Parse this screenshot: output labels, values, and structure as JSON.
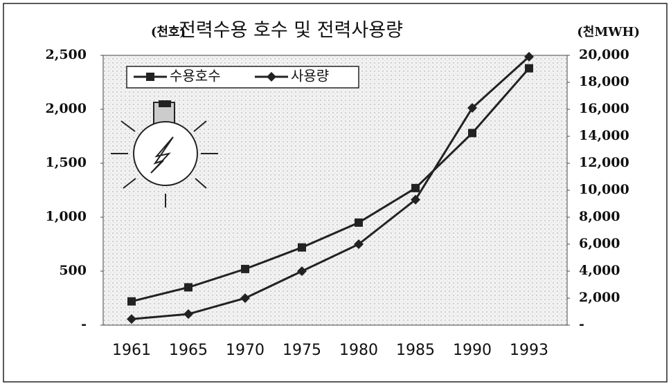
{
  "chart_data": {
    "type": "line",
    "title": "전력수용 호수 및 전력사용량",
    "y_label": "(천호)",
    "y2_label": "(천MWH)",
    "categories": [
      "1961",
      "1965",
      "1970",
      "1975",
      "1980",
      "1985",
      "1990",
      "1993"
    ],
    "series": [
      {
        "name": "수용호수",
        "color": "#222222",
        "marker": "square",
        "values": [
          220,
          350,
          520,
          720,
          950,
          1270,
          1780,
          2380
        ]
      },
      {
        "name": "사용량",
        "color": "#222222",
        "marker": "diamond",
        "axis": "y2",
        "values": [
          450,
          820,
          2000,
          4000,
          6000,
          9300,
          16100,
          19900
        ]
      }
    ],
    "ylim": [
      0,
      2500
    ],
    "yticks": [
      {
        "value": 0,
        "label": "-"
      },
      500,
      {
        "value": 1000,
        "label": "1,000"
      },
      {
        "value": 1500,
        "label": "1,500"
      },
      {
        "value": 2000,
        "label": "2,000"
      },
      {
        "value": 2500,
        "label": "2,500"
      }
    ],
    "y2lim": [
      0,
      20000
    ],
    "y2ticks": [
      {
        "value": 0,
        "label": "-"
      },
      {
        "value": 2000,
        "label": "2,000"
      },
      {
        "value": 4000,
        "label": "4,000"
      },
      {
        "value": 6000,
        "label": "6,000"
      },
      {
        "value": 8000,
        "label": "8,000"
      },
      {
        "value": 10000,
        "label": "10,000"
      },
      {
        "value": 12000,
        "label": "12,000"
      },
      {
        "value": 14000,
        "label": "14,000"
      },
      {
        "value": 16000,
        "label": "16,000"
      },
      {
        "value": 18000,
        "label": "18,000"
      },
      {
        "value": 20000,
        "label": "20,000"
      }
    ],
    "legend": "upper left"
  }
}
